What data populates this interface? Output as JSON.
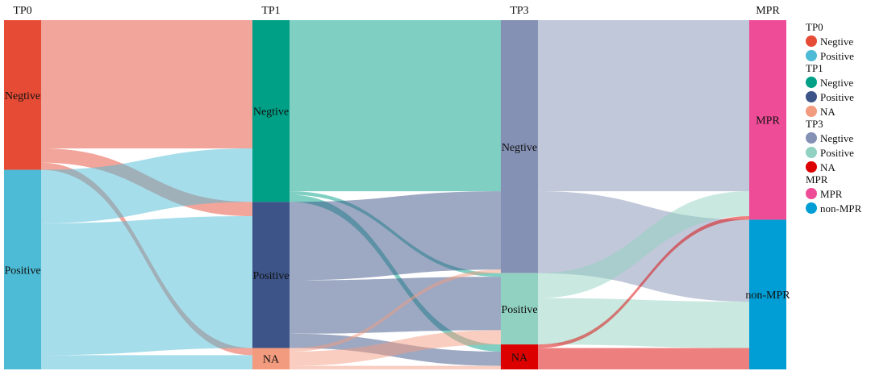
{
  "chart_data": {
    "type": "sankey",
    "title": "",
    "columns": [
      "TP0",
      "TP1",
      "TP3",
      "MPR"
    ],
    "nodes": [
      {
        "id": "TP0_Neg",
        "column": "TP0",
        "label": "Negtive",
        "value": 42,
        "color": "#E64B35"
      },
      {
        "id": "TP0_Pos",
        "column": "TP0",
        "label": "Positive",
        "value": 56,
        "color": "#4DBBD5"
      },
      {
        "id": "TP1_Neg",
        "column": "TP1",
        "label": "Negtive",
        "value": 51,
        "color": "#00A087"
      },
      {
        "id": "TP1_Pos",
        "column": "TP1",
        "label": "Positive",
        "value": 41,
        "color": "#3C5488"
      },
      {
        "id": "TP1_NA",
        "column": "TP1",
        "label": "NA",
        "value": 6,
        "color": "#F39B7F"
      },
      {
        "id": "TP3_Neg",
        "column": "TP3",
        "label": "Negtive",
        "value": 71,
        "color": "#8491B4"
      },
      {
        "id": "TP3_Pos",
        "column": "TP3",
        "label": "Positive",
        "value": 20,
        "color": "#91D1C2"
      },
      {
        "id": "TP3_NA",
        "column": "TP3",
        "label": "NA",
        "value": 7,
        "color": "#DC0000"
      },
      {
        "id": "MPR_MPR",
        "column": "MPR",
        "label": "MPR",
        "value": 56,
        "color": "#EE4C97"
      },
      {
        "id": "MPR_non",
        "column": "MPR",
        "label": "non-MPR",
        "value": 42,
        "color": "#009ED5"
      }
    ],
    "links": [
      {
        "source": "TP0_Neg",
        "target": "TP1_Neg",
        "value": 36
      },
      {
        "source": "TP0_Neg",
        "target": "TP1_Pos",
        "value": 4
      },
      {
        "source": "TP0_Neg",
        "target": "TP1_NA",
        "value": 2
      },
      {
        "source": "TP0_Pos",
        "target": "TP1_Neg",
        "value": 15
      },
      {
        "source": "TP0_Pos",
        "target": "TP1_Pos",
        "value": 37
      },
      {
        "source": "TP0_Pos",
        "target": "TP1_NA",
        "value": 4
      },
      {
        "source": "TP1_Neg",
        "target": "TP3_Neg",
        "value": 48
      },
      {
        "source": "TP1_Neg",
        "target": "TP3_Pos",
        "value": 1
      },
      {
        "source": "TP1_Neg",
        "target": "TP3_NA",
        "value": 2
      },
      {
        "source": "TP1_Pos",
        "target": "TP3_Neg",
        "value": 22
      },
      {
        "source": "TP1_Pos",
        "target": "TP3_Pos",
        "value": 15
      },
      {
        "source": "TP1_Pos",
        "target": "TP3_NA",
        "value": 4
      },
      {
        "source": "TP1_NA",
        "target": "TP3_Neg",
        "value": 1
      },
      {
        "source": "TP1_NA",
        "target": "TP3_Pos",
        "value": 4
      },
      {
        "source": "TP1_NA",
        "target": "TP3_NA",
        "value": 1
      },
      {
        "source": "TP3_Neg",
        "target": "MPR_MPR",
        "value": 48
      },
      {
        "source": "TP3_Neg",
        "target": "MPR_non",
        "value": 23
      },
      {
        "source": "TP3_Pos",
        "target": "MPR_MPR",
        "value": 7
      },
      {
        "source": "TP3_Pos",
        "target": "MPR_non",
        "value": 13
      },
      {
        "source": "TP3_NA",
        "target": "MPR_MPR",
        "value": 1
      },
      {
        "source": "TP3_NA",
        "target": "MPR_non",
        "value": 6
      }
    ],
    "legend": {
      "placement": "right",
      "groups": [
        {
          "title": "TP0",
          "items": [
            {
              "label": "Negtive",
              "color": "#E64B35"
            },
            {
              "label": "Positive",
              "color": "#4DBBD5"
            }
          ]
        },
        {
          "title": "TP1",
          "items": [
            {
              "label": "Negtive",
              "color": "#00A087"
            },
            {
              "label": "Positive",
              "color": "#3C5488"
            },
            {
              "label": "NA",
              "color": "#F39B7F"
            }
          ]
        },
        {
          "title": "TP3",
          "items": [
            {
              "label": "Negtive",
              "color": "#8491B4"
            },
            {
              "label": "Positive",
              "color": "#91D1C2"
            },
            {
              "label": "NA",
              "color": "#DC0000"
            }
          ]
        },
        {
          "title": "MPR",
          "items": [
            {
              "label": "MPR",
              "color": "#EE4C97"
            },
            {
              "label": "non-MPR",
              "color": "#009ED5"
            }
          ]
        }
      ]
    }
  }
}
